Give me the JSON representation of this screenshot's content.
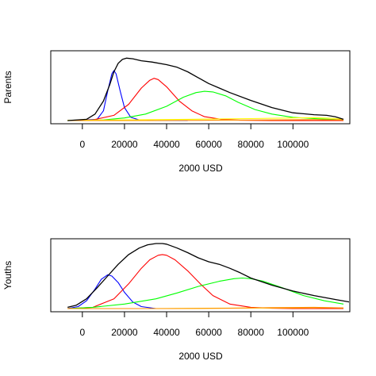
{
  "chart_data": [
    {
      "type": "line",
      "ylabel": "Parents",
      "xlabel": "2000 USD",
      "xlim": [
        -15000,
        127000
      ],
      "ylim": [
        0,
        1
      ],
      "xticks": [
        0,
        20000,
        40000,
        60000,
        80000,
        100000
      ],
      "xtick_labels": [
        "0",
        "20000",
        "40000",
        "60000",
        "80000",
        "100000"
      ],
      "series": [
        {
          "color": "#0000ff",
          "x": [
            -7000,
            7000,
            10000,
            12000,
            14000,
            15000,
            16000,
            18000,
            20000,
            23000,
            27000,
            35000,
            50000
          ],
          "y": [
            0,
            0.02,
            0.15,
            0.45,
            0.72,
            0.77,
            0.72,
            0.45,
            0.2,
            0.05,
            0.01,
            0,
            0
          ]
        },
        {
          "color": "#ff0000",
          "x": [
            -7000,
            5000,
            15000,
            22000,
            28000,
            32000,
            34000,
            36000,
            40000,
            46000,
            52000,
            58000,
            66000,
            75000,
            90000,
            105000,
            124000
          ],
          "y": [
            0,
            0.01,
            0.08,
            0.25,
            0.5,
            0.62,
            0.65,
            0.63,
            0.52,
            0.3,
            0.15,
            0.06,
            0.02,
            0.005,
            0,
            0,
            0
          ]
        },
        {
          "color": "#00ff00",
          "x": [
            -7000,
            10000,
            20000,
            30000,
            40000,
            48000,
            54000,
            58000,
            62000,
            68000,
            74000,
            82000,
            90000,
            100000,
            110000,
            124000
          ],
          "y": [
            0,
            0.01,
            0.04,
            0.1,
            0.22,
            0.36,
            0.43,
            0.45,
            0.44,
            0.38,
            0.28,
            0.17,
            0.1,
            0.05,
            0.03,
            0.01
          ]
        },
        {
          "color": "#ffff00",
          "x": [
            -7000,
            20000,
            50000,
            80000,
            100000,
            110000,
            118000,
            124000
          ],
          "y": [
            0.005,
            0.01,
            0.02,
            0.03,
            0.04,
            0.045,
            0.035,
            0.02
          ]
        },
        {
          "color": "#ff8c00",
          "x": [
            -7000,
            30000,
            60000,
            90000,
            110000,
            124000
          ],
          "y": [
            0,
            0,
            0.005,
            0.01,
            0.015,
            0.01
          ]
        },
        {
          "color": "#000000",
          "x": [
            -7000,
            2000,
            6000,
            10000,
            13000,
            15000,
            17000,
            19000,
            21000,
            24000,
            28000,
            33000,
            40000,
            45000,
            50000,
            55000,
            60000,
            65000,
            70000,
            80000,
            90000,
            100000,
            110000,
            116000,
            120000,
            124000
          ],
          "y": [
            0,
            0.02,
            0.1,
            0.3,
            0.55,
            0.75,
            0.88,
            0.94,
            0.96,
            0.95,
            0.92,
            0.9,
            0.86,
            0.82,
            0.75,
            0.66,
            0.57,
            0.5,
            0.43,
            0.31,
            0.2,
            0.12,
            0.09,
            0.08,
            0.06,
            0.02
          ]
        }
      ]
    },
    {
      "type": "line",
      "ylabel": "Youths",
      "xlabel": "2000 USD",
      "xlim": [
        -15000,
        127000
      ],
      "ylim": [
        0,
        1
      ],
      "xticks": [
        0,
        20000,
        40000,
        60000,
        80000,
        100000
      ],
      "xtick_labels": [
        "0",
        "20000",
        "40000",
        "60000",
        "80000",
        "100000"
      ],
      "series": [
        {
          "color": "#0000ff",
          "x": [
            -7000,
            -2000,
            2000,
            6000,
            9000,
            12000,
            14000,
            17000,
            20000,
            24000,
            28000,
            35000,
            45000
          ],
          "y": [
            0,
            0.03,
            0.12,
            0.3,
            0.45,
            0.52,
            0.5,
            0.4,
            0.25,
            0.1,
            0.03,
            0,
            0
          ]
        },
        {
          "color": "#ff0000",
          "x": [
            -7000,
            5000,
            15000,
            22000,
            28000,
            32000,
            36000,
            38000,
            40000,
            44000,
            50000,
            56000,
            62000,
            70000,
            80000,
            90000,
            100000,
            124000
          ],
          "y": [
            0,
            0.02,
            0.15,
            0.38,
            0.62,
            0.75,
            0.82,
            0.83,
            0.82,
            0.75,
            0.58,
            0.38,
            0.2,
            0.07,
            0.02,
            0.005,
            0,
            0
          ]
        },
        {
          "color": "#00ff00",
          "x": [
            -7000,
            5000,
            20000,
            35000,
            45000,
            55000,
            65000,
            72000,
            76000,
            80000,
            86000,
            95000,
            105000,
            115000,
            124000
          ],
          "y": [
            0,
            0.02,
            0.07,
            0.15,
            0.24,
            0.34,
            0.42,
            0.46,
            0.47,
            0.46,
            0.42,
            0.32,
            0.2,
            0.12,
            0.07
          ]
        },
        {
          "color": "#ffff00",
          "x": [
            -7000,
            30000,
            60000,
            90000,
            110000,
            124000
          ],
          "y": [
            0,
            0,
            0.005,
            0.01,
            0.015,
            0.01
          ]
        },
        {
          "color": "#ff8c00",
          "x": [
            -7000,
            40000,
            70000,
            90000,
            110000,
            124000
          ],
          "y": [
            0,
            0,
            0.005,
            0.015,
            0.02,
            0.01
          ]
        },
        {
          "color": "#000000",
          "x": [
            -7000,
            -3000,
            2000,
            7000,
            12000,
            17000,
            22000,
            27000,
            31000,
            35000,
            38000,
            40000,
            45000,
            50000,
            55000,
            60000,
            65000,
            70000,
            75000,
            80000,
            90000,
            100000,
            110000,
            120000,
            127000
          ],
          "y": [
            0.02,
            0.05,
            0.15,
            0.32,
            0.5,
            0.68,
            0.83,
            0.93,
            0.98,
            1.0,
            1.0,
            0.99,
            0.93,
            0.86,
            0.78,
            0.72,
            0.68,
            0.62,
            0.55,
            0.47,
            0.36,
            0.27,
            0.2,
            0.14,
            0.1
          ]
        }
      ]
    }
  ]
}
